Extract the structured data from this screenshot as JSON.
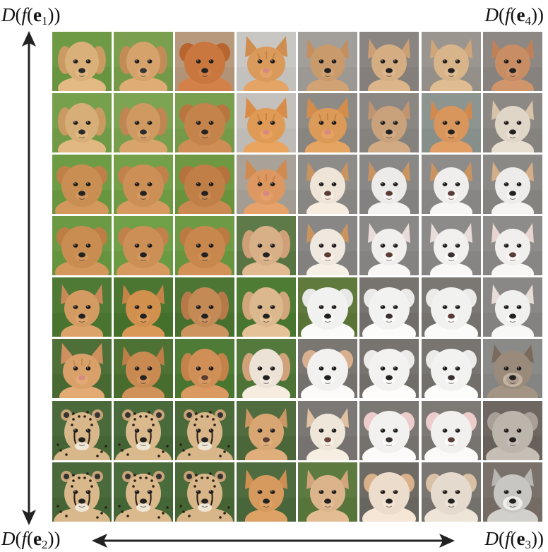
{
  "figure": {
    "labels": {
      "top_left": {
        "fn": "D",
        "inner": "f",
        "vec": "e",
        "sub": "1"
      },
      "top_right": {
        "fn": "D",
        "inner": "f",
        "vec": "e",
        "sub": "4"
      },
      "bottom_left": {
        "fn": "D",
        "inner": "f",
        "vec": "e",
        "sub": "2"
      },
      "bottom_right": {
        "fn": "D",
        "inner": "f",
        "vec": "e",
        "sub": "3"
      }
    },
    "arrows": {
      "vertical": "double-headed, between e1 (top) and e2 (bottom)",
      "horizontal": "double-headed, between e2 (left) and e3 (right)"
    },
    "grid": {
      "rows": 8,
      "cols": 8,
      "cells": [
        [
          {
            "subject": "golden retriever",
            "bg": "#6f9a45",
            "fur": "#d9b07a",
            "ear": "#c99a62",
            "nose": "#2a2a2e",
            "type": "floppy"
          },
          {
            "subject": "golden retriever",
            "bg": "#7aa04f",
            "fur": "#d4a26a",
            "ear": "#c18c55",
            "nose": "#33333a",
            "type": "floppy"
          },
          {
            "subject": "red fluffy dog",
            "bg": "#b79a7e",
            "fur": "#c9773f",
            "ear": "#b8652f",
            "nose": "#222",
            "type": "fluffy"
          },
          {
            "subject": "orange tabby cat",
            "bg": "#c9c7c4",
            "fur": "#d99a5c",
            "ear": "#cf8d4f",
            "nose": "#d88a80",
            "type": "cat"
          },
          {
            "subject": "yorkshire terrier",
            "bg": "#a29e99",
            "fur": "#c99a6c",
            "ear": "#c58e5e",
            "nose": "#222",
            "type": "pointy"
          },
          {
            "subject": "yorkshire terrier",
            "bg": "#8a8580",
            "fur": "#d5ad82",
            "ear": "#cc9f74",
            "nose": "#222",
            "type": "pointy"
          },
          {
            "subject": "yorkshire terrier",
            "bg": "#9a958f",
            "fur": "#d8b48a",
            "ear": "#cfa67a",
            "nose": "#222",
            "type": "pointy"
          },
          {
            "subject": "yorkshire terrier",
            "bg": "#8d8884",
            "fur": "#c88d63",
            "ear": "#c08158",
            "nose": "#222",
            "type": "pointy"
          }
        ],
        [
          {
            "subject": "golden retriever",
            "bg": "#76a04c",
            "fur": "#d8ae78",
            "ear": "#c99a62",
            "nose": "#2a2a2e",
            "type": "floppy"
          },
          {
            "subject": "golden dog",
            "bg": "#7da452",
            "fur": "#cf9a62",
            "ear": "#bf8552",
            "nose": "#2a2a2e",
            "type": "floppy"
          },
          {
            "subject": "sheltie-like dog",
            "bg": "#7aa04f",
            "fur": "#c4834a",
            "ear": "#b8753e",
            "nose": "#222",
            "type": "fluffy"
          },
          {
            "subject": "orange tabby cat",
            "bg": "#c4c1bd",
            "fur": "#df9a55",
            "ear": "#d88c48",
            "nose": "#d88a80",
            "type": "cat"
          },
          {
            "subject": "orange tabby cat",
            "bg": "#8e8a86",
            "fur": "#dc9a58",
            "ear": "#d28c4c",
            "nose": "#d88a80",
            "type": "cat"
          },
          {
            "subject": "yorkshire terrier",
            "bg": "#8b8783",
            "fur": "#c9a27c",
            "ear": "#c09470",
            "nose": "#222",
            "type": "pointy"
          },
          {
            "subject": "shiba-like dog",
            "bg": "#8d9590",
            "fur": "#d8955c",
            "ear": "#cf8a50",
            "nose": "#222",
            "type": "pointy"
          },
          {
            "subject": "light terrier",
            "bg": "#8c8884",
            "fur": "#e0d6c8",
            "ear": "#d8c3a8",
            "nose": "#222",
            "type": "pointy"
          }
        ],
        [
          {
            "subject": "pomeranian mix",
            "bg": "#6e9c44",
            "fur": "#c98e52",
            "ear": "#bf8048",
            "nose": "#222",
            "type": "fluffy"
          },
          {
            "subject": "pomeranian mix",
            "bg": "#74a04a",
            "fur": "#cc8f55",
            "ear": "#c0824a",
            "nose": "#222",
            "type": "fluffy"
          },
          {
            "subject": "pomeranian mix",
            "bg": "#6e9842",
            "fur": "#c07f46",
            "ear": "#b5723c",
            "nose": "#222",
            "type": "fluffy"
          },
          {
            "subject": "orange tabby cat",
            "bg": "#a9a298",
            "fur": "#dc9860",
            "ear": "#d08b52",
            "nose": "#d88a80",
            "type": "cat"
          },
          {
            "subject": "cream dog",
            "bg": "#8e8c89",
            "fur": "#eee5d8",
            "ear": "#c99460",
            "nose": "#5a3c34",
            "type": "pointy"
          },
          {
            "subject": "white dog",
            "bg": "#8a8886",
            "fur": "#ecebea",
            "ear": "#c99460",
            "nose": "#5a3c34",
            "type": "pointy"
          },
          {
            "subject": "white dog",
            "bg": "#8e8c8a",
            "fur": "#efeeec",
            "ear": "#c99460",
            "nose": "#5a3c34",
            "type": "pointy"
          },
          {
            "subject": "white terrier",
            "bg": "#8b8986",
            "fur": "#eeecea",
            "ear": "#d5ad88",
            "nose": "#222",
            "type": "pointy"
          }
        ],
        [
          {
            "subject": "pomeranian mix",
            "bg": "#6c9a44",
            "fur": "#c98d52",
            "ear": "#bd7e46",
            "nose": "#222",
            "type": "fluffy"
          },
          {
            "subject": "pomeranian mix",
            "bg": "#70a048",
            "fur": "#cc8f56",
            "ear": "#c0824a",
            "nose": "#222",
            "type": "fluffy"
          },
          {
            "subject": "pomeranian mix",
            "bg": "#6d9a44",
            "fur": "#c7874d",
            "ear": "#bb7a42",
            "nose": "#222",
            "type": "fluffy"
          },
          {
            "subject": "tan mixed dog",
            "bg": "#5e7a48",
            "fur": "#d7b088",
            "ear": "#cfa078",
            "nose": "#222",
            "type": "floppy"
          },
          {
            "subject": "cream dog",
            "bg": "#888785",
            "fur": "#efe8de",
            "ear": "#c99460",
            "nose": "#5a3c34",
            "type": "pointy"
          },
          {
            "subject": "white dog",
            "bg": "#8a8987",
            "fur": "#f0efee",
            "ear": "#e8dcd8",
            "nose": "#5a3c34",
            "type": "pointy"
          },
          {
            "subject": "white dog",
            "bg": "#8c8b89",
            "fur": "#f1f0ef",
            "ear": "#e8dcd8",
            "nose": "#3a3030",
            "type": "pointy"
          },
          {
            "subject": "white dog",
            "bg": "#8d8c8a",
            "fur": "#f0efee",
            "ear": "#e8d4d0",
            "nose": "#5a3c34",
            "type": "pointy"
          }
        ],
        [
          {
            "subject": "chihuahua",
            "bg": "#4f7a35",
            "fur": "#d39a62",
            "ear": "#c8895a",
            "nose": "#222",
            "type": "pointy"
          },
          {
            "subject": "chihuahua",
            "bg": "#4b7632",
            "fur": "#d1904e",
            "ear": "#c48448",
            "nose": "#222",
            "type": "pointy"
          },
          {
            "subject": "brown puppy",
            "bg": "#4d7634",
            "fur": "#c38a56",
            "ear": "#b57a48",
            "nose": "#222",
            "type": "floppy"
          },
          {
            "subject": "tan dog",
            "bg": "#4f7c35",
            "fur": "#dcb88e",
            "ear": "#d1a67a",
            "nose": "#222",
            "type": "floppy"
          },
          {
            "subject": "maltese",
            "bg": "#5f7a3c",
            "fur": "#f1f1f0",
            "ear": "#e8e8e7",
            "nose": "#222",
            "type": "fluffy"
          },
          {
            "subject": "maltese",
            "bg": "#77736f",
            "fur": "#f2f2f1",
            "ear": "#ebeae9",
            "nose": "#3a3030",
            "type": "fluffy"
          },
          {
            "subject": "maltese",
            "bg": "#7b7874",
            "fur": "#f1f1f0",
            "ear": "#ebeae9",
            "nose": "#5a3c34",
            "type": "fluffy"
          },
          {
            "subject": "white spitz",
            "bg": "#8a8886",
            "fur": "#f0f0ef",
            "ear": "#e8dcd8",
            "nose": "#222",
            "type": "pointy"
          }
        ],
        [
          {
            "subject": "orange white cat",
            "bg": "#4e6f38",
            "fur": "#d9a06a",
            "ear": "#cf9060",
            "nose": "#d88a80",
            "type": "cat"
          },
          {
            "subject": "chihuahua",
            "bg": "#4d7234",
            "fur": "#c98a52",
            "ear": "#bd7e48",
            "nose": "#222",
            "type": "pointy"
          },
          {
            "subject": "pit bull mix",
            "bg": "#4e7c36",
            "fur": "#cf8f56",
            "ear": "#c2824a",
            "nose": "#5a3c34",
            "type": "floppy"
          },
          {
            "subject": "jack russell mix",
            "bg": "#537a3c",
            "fur": "#ece2d6",
            "ear": "#d1a27a",
            "nose": "#222",
            "type": "floppy"
          },
          {
            "subject": "maltese",
            "bg": "#7a7773",
            "fur": "#f2f1f0",
            "ear": "#d8b090",
            "nose": "#222",
            "type": "fluffy"
          },
          {
            "subject": "maltese",
            "bg": "#777470",
            "fur": "#f3f2f1",
            "ear": "#ecebea",
            "nose": "#222",
            "type": "fluffy"
          },
          {
            "subject": "maltese",
            "bg": "#787571",
            "fur": "#f2f2f1",
            "ear": "#ecebea",
            "nose": "#3a3030",
            "type": "fluffy"
          },
          {
            "subject": "wolf",
            "bg": "#8a8a88",
            "fur": "#9a8a7a",
            "ear": "#7a6a5c",
            "nose": "#222",
            "type": "wolf"
          }
        ],
        [
          {
            "subject": "cheetah",
            "bg": "#4a6a3c",
            "fur": "#d8b88a",
            "ear": "#c8a478",
            "nose": "#222",
            "type": "cheetah"
          },
          {
            "subject": "cheetah",
            "bg": "#496a3a",
            "fur": "#dab98c",
            "ear": "#c9a579",
            "nose": "#222",
            "type": "cheetah"
          },
          {
            "subject": "cheetah",
            "bg": "#4b6a3a",
            "fur": "#d8b68a",
            "ear": "#c8a276",
            "nose": "#222",
            "type": "cheetah"
          },
          {
            "subject": "chihuahua mix",
            "bg": "#516c3e",
            "fur": "#d8a672",
            "ear": "#cc9664",
            "nose": "#5a3c34",
            "type": "pointy"
          },
          {
            "subject": "chihuahua",
            "bg": "#7c7875",
            "fur": "#efe6da",
            "ear": "#e0c2a2",
            "nose": "#6a4038",
            "type": "pointy"
          },
          {
            "subject": "maltese",
            "bg": "#7b7773",
            "fur": "#f2f1f0",
            "ear": "#eccdcb",
            "nose": "#3a3030",
            "type": "fluffy"
          },
          {
            "subject": "maltese",
            "bg": "#7d7975",
            "fur": "#f1f0ef",
            "ear": "#eccdcb",
            "nose": "#5a3c34",
            "type": "fluffy"
          },
          {
            "subject": "grey terrier",
            "bg": "#6e6660",
            "fur": "#bcb5ac",
            "ear": "#a8a098",
            "nose": "#222",
            "type": "fluffy"
          }
        ],
        [
          {
            "subject": "cheetah",
            "bg": "#4a6a3c",
            "fur": "#d9b98c",
            "ear": "#c9a579",
            "nose": "#222",
            "type": "cheetah"
          },
          {
            "subject": "cheetah",
            "bg": "#4a6b3b",
            "fur": "#dab98c",
            "ear": "#c9a579",
            "nose": "#222",
            "type": "cheetah"
          },
          {
            "subject": "cheetah",
            "bg": "#4b6a3a",
            "fur": "#d8b68a",
            "ear": "#c8a276",
            "nose": "#222",
            "type": "cheetah"
          },
          {
            "subject": "corgi mix",
            "bg": "#4f6c40",
            "fur": "#d79a5e",
            "ear": "#cf8e52",
            "nose": "#222",
            "type": "pointy"
          },
          {
            "subject": "chihuahua",
            "bg": "#5d7a40",
            "fur": "#dcb48c",
            "ear": "#d1a47a",
            "nose": "#222",
            "type": "pointy"
          },
          {
            "subject": "pomeranian mix",
            "bg": "#6e6a64",
            "fur": "#ecdccb",
            "ear": "#d8b08a",
            "nose": "#222",
            "type": "fluffy"
          },
          {
            "subject": "pomeranian mix",
            "bg": "#7a7672",
            "fur": "#e4dacd",
            "ear": "#d8c0a4",
            "nose": "#222",
            "type": "fluffy"
          },
          {
            "subject": "grey wolf-dog",
            "bg": "#7a726a",
            "fur": "#c8c6c2",
            "ear": "#b8b6b2",
            "nose": "#222",
            "type": "wolf"
          }
        ]
      ]
    }
  }
}
